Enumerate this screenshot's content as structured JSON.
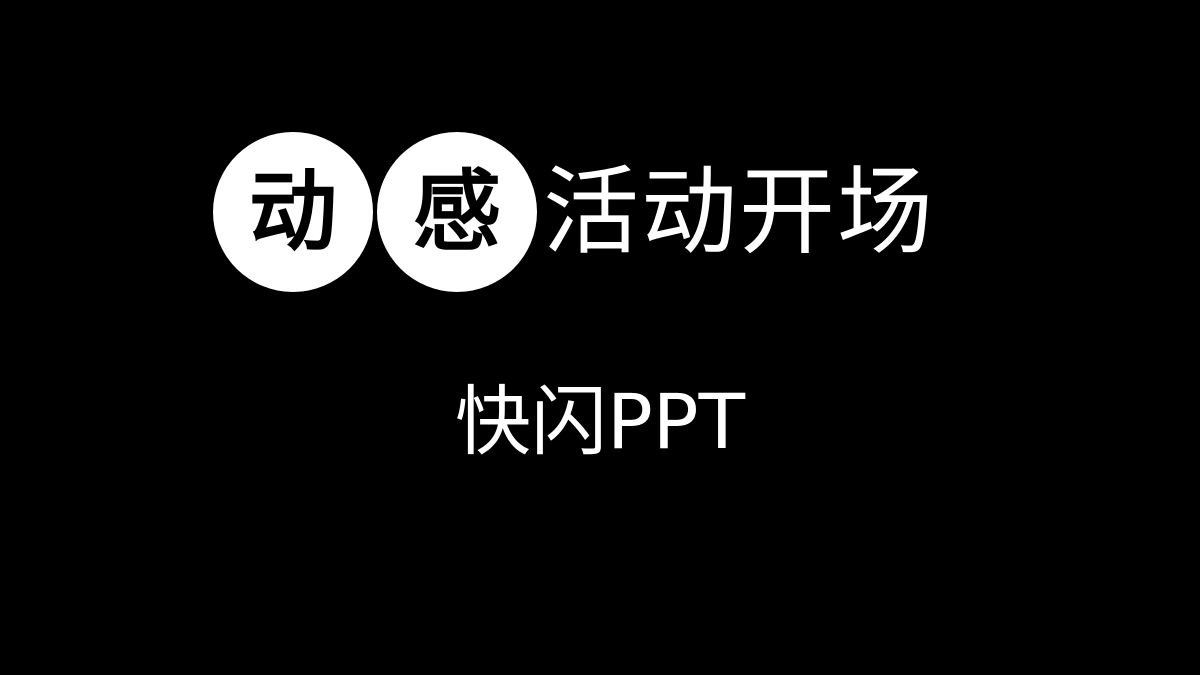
{
  "slide": {
    "title_circle_chars": [
      "动",
      "感"
    ],
    "title_rest": "活动开场",
    "subtitle": "快闪PPT"
  },
  "colors": {
    "background": "#000000",
    "text": "#ffffff",
    "circle_fill": "#ffffff",
    "circle_text": "#000000"
  }
}
